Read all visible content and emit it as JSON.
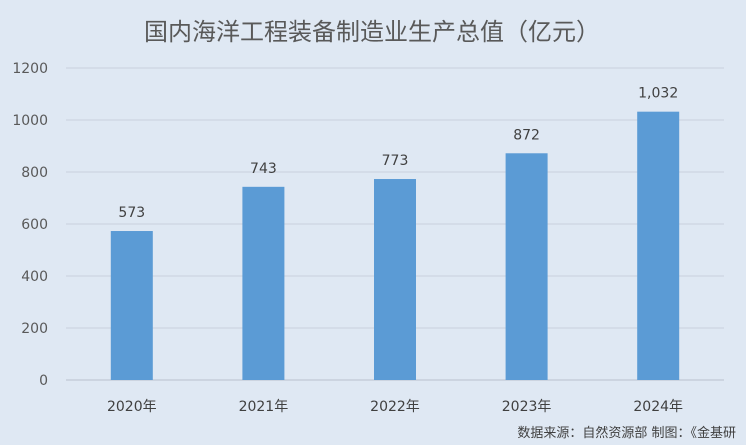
{
  "chart_data": {
    "type": "bar",
    "title": "国内海洋工程装备制造业生产总值（亿元）",
    "categories": [
      "2020年",
      "2021年",
      "2022年",
      "2023年",
      "2024年"
    ],
    "values": [
      573,
      743,
      773,
      872,
      1032
    ],
    "data_labels": [
      "573",
      "743",
      "773",
      "872",
      "1,032"
    ],
    "yticks": [
      "0",
      "200",
      "400",
      "600",
      "800",
      "1000",
      "1200"
    ],
    "ylim": [
      0,
      1200
    ],
    "xlabel": "",
    "ylabel": "",
    "grid": true,
    "legend": "none",
    "bar_color": "#5b9bd5"
  },
  "footer": {
    "source": "数据来源：自然资源部  制图：《金基研"
  },
  "colors": {
    "background": "#dfe8f3",
    "gridline": "#c9d1dc"
  }
}
